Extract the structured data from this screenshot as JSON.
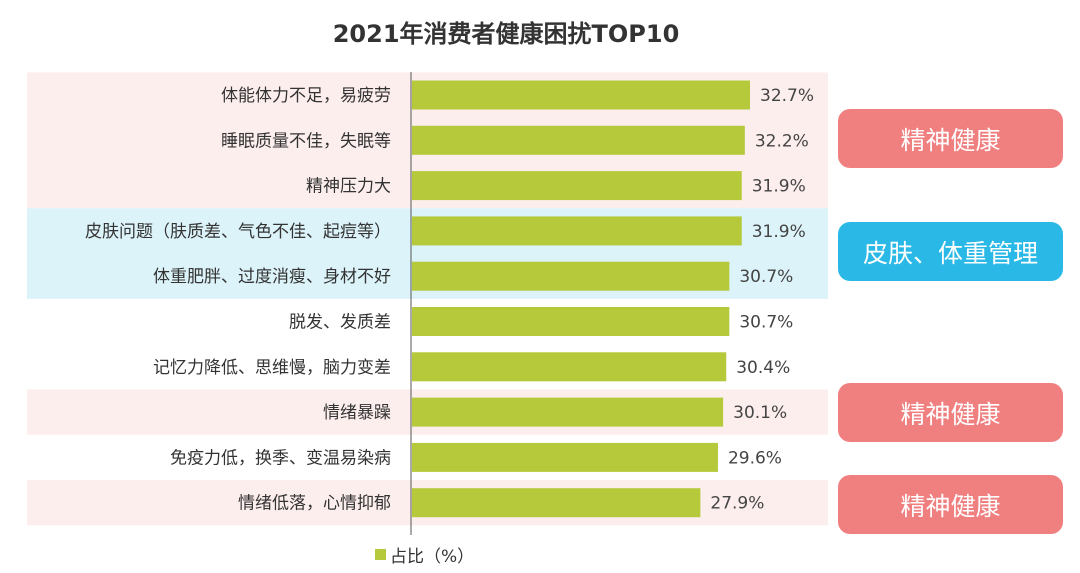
{
  "chart_data": {
    "type": "bar",
    "orientation": "horizontal",
    "title": "2021年消费者健康困扰TOP10",
    "categories": [
      "体能体力不足，易疲劳",
      "睡眠质量不佳，失眠等",
      "精神压力大",
      "皮肤问题（肤质差、气色不佳、起痘等）",
      "体重肥胖、过度消瘦、身材不好",
      "脱发、发质差",
      "记忆力降低、思维慢，脑力变差",
      "情绪暴躁",
      "免疫力低，换季、变温易染病",
      "情绪低落，心情抑郁"
    ],
    "series": [
      {
        "name": "占比（%）",
        "values": [
          32.7,
          32.2,
          31.9,
          31.9,
          30.7,
          30.7,
          30.4,
          30.1,
          29.6,
          27.9
        ],
        "value_labels": [
          "32.7%",
          "32.2%",
          "31.9%",
          "31.9%",
          "30.7%",
          "30.7%",
          "30.4%",
          "30.1%",
          "29.6%",
          "27.9%"
        ],
        "color": "#b5c93a"
      }
    ],
    "xlim": [
      0,
      32.7
    ],
    "grid": false,
    "legend_position": "bottom",
    "bands": [
      {
        "category_range": [
          0,
          2
        ],
        "color": "#fdeeee"
      },
      {
        "category_range": [
          3,
          4
        ],
        "color": "#dcf3f9"
      },
      {
        "category_range": [
          7,
          7
        ],
        "color": "#fdeeee"
      },
      {
        "category_range": [
          9,
          9
        ],
        "color": "#fdeeee"
      }
    ],
    "annotations": [
      {
        "text": "精神健康",
        "category_range": [
          0,
          2
        ],
        "color": "#f07f80"
      },
      {
        "text": "皮肤、体重管理",
        "category_range": [
          3,
          4
        ],
        "color": "#2ab8e6"
      },
      {
        "text": "精神健康",
        "category_range": [
          7,
          7
        ],
        "color": "#f07f80"
      },
      {
        "text": "精神健康",
        "category_range": [
          9,
          9
        ],
        "color": "#f07f80"
      }
    ]
  }
}
